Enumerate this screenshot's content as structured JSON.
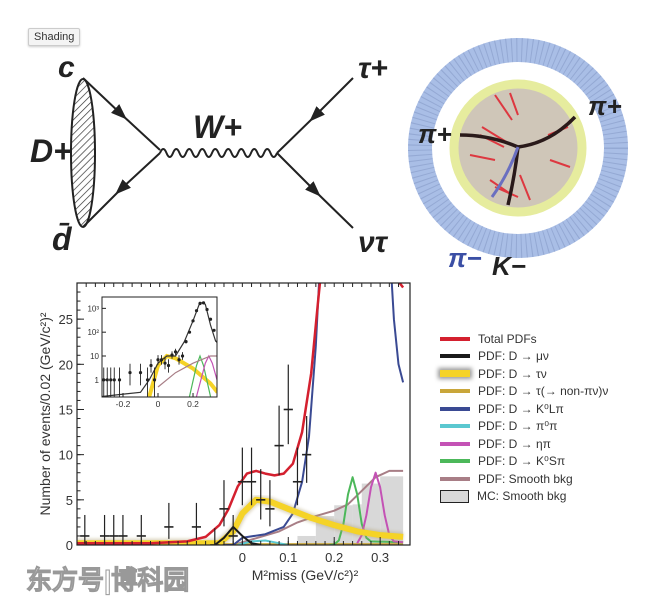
{
  "tooltip": "Shading",
  "feynman": {
    "labels": {
      "quark": "c",
      "meson": "D+",
      "antiquark": "d̄",
      "boson": "W+",
      "lepton": "τ+",
      "neutrino": "ντ"
    }
  },
  "detector": {
    "labels": {
      "pi_plus_left": "π+",
      "pi_plus_right": "π+",
      "pi_minus": "π−",
      "k_minus": "K−"
    }
  },
  "legend": [
    {
      "label": "Total PDFs",
      "color": "#d4202f"
    },
    {
      "label": "PDF: D → μν",
      "color": "#1a1a1a"
    },
    {
      "label": "PDF: D → τν",
      "color": "#f5d327"
    },
    {
      "label": "PDF: D → τ(→ non-πν)ν",
      "color": "#c9a63a"
    },
    {
      "label": "PDF: D → K⁰Lπ",
      "color": "#3a4a93"
    },
    {
      "label": "PDF: D → π⁰π",
      "color": "#5bc8d0"
    },
    {
      "label": "PDF: D → ηπ",
      "color": "#c452b5"
    },
    {
      "label": "PDF: D → K⁰Sπ",
      "color": "#4cb85a"
    },
    {
      "label": "PDF: Smooth bkg",
      "color": "#a87e86"
    },
    {
      "label": "MC: Smooth bkg",
      "color": "#d8d8d8"
    }
  ],
  "watermark": "东方号|博科园",
  "chart_data": [
    {
      "type": "line",
      "ylabel": "Number of events/0.02 (GeV/c²)²",
      "xlabel": "M²miss (GeV/c²)²",
      "xlim": [
        -0.36,
        0.365
      ],
      "ylim": [
        0,
        29
      ],
      "xticks": [
        0,
        0.1,
        0.2,
        0.3
      ],
      "xtick_labels": [
        "0",
        "0.1",
        "0.2",
        "0.3"
      ],
      "yticks": [
        0,
        5,
        10,
        15,
        20,
        25
      ],
      "ytick_labels": [
        "0",
        "5",
        "10",
        "15",
        "20",
        "25"
      ],
      "data_points": {
        "x": [
          -0.343,
          -0.3,
          -0.28,
          -0.26,
          -0.22,
          -0.16,
          -0.1,
          -0.06,
          -0.04,
          -0.02,
          0.0,
          0.02,
          0.04,
          0.06,
          0.08,
          0.1,
          0.12,
          0.14
        ],
        "y": [
          1,
          1,
          1,
          1,
          1,
          2,
          2,
          0,
          4,
          1,
          7,
          7,
          5,
          4,
          11,
          15,
          7,
          10
        ]
      },
      "mc_histogram": {
        "edges": [
          0.12,
          0.16,
          0.2,
          0.24,
          0.26,
          0.3,
          0.35
        ],
        "values": [
          1.0,
          3.2,
          4.4,
          4.5,
          6.8,
          7.6
        ]
      },
      "series": [
        {
          "key": "smooth_bkg",
          "segments": [
            [
              [
                -0.36,
                0
              ],
              [
                -0.02,
                0
              ],
              [
                0.02,
                0.6
              ],
              [
                0.08,
                1.5
              ],
              [
                0.12,
                2.5
              ],
              [
                0.16,
                3.2
              ],
              [
                0.2,
                3.8
              ],
              [
                0.23,
                4.5
              ],
              [
                0.26,
                6
              ],
              [
                0.29,
                7.5
              ],
              [
                0.32,
                8.2
              ],
              [
                0.35,
                8.2
              ]
            ]
          ]
        },
        {
          "key": "non_pinu",
          "segments": [
            [
              [
                -0.36,
                0.1
              ],
              [
                0.35,
                0.1
              ]
            ]
          ]
        },
        {
          "key": "pi0pi",
          "segments": [
            [
              [
                -0.01,
                0
              ],
              [
                0.02,
                0.4
              ],
              [
                0.05,
                0.5
              ],
              [
                0.08,
                0.2
              ],
              [
                0.1,
                0
              ]
            ]
          ]
        },
        {
          "key": "ks_pi",
          "segments": [
            [
              [
                0.19,
                0
              ],
              [
                0.2,
                0.07
              ],
              [
                0.21,
                0.5
              ],
              [
                0.22,
                2.3
              ],
              [
                0.23,
                5.6
              ],
              [
                0.24,
                7.5
              ],
              [
                0.25,
                5.6
              ],
              [
                0.26,
                2.3
              ],
              [
                0.27,
                0.8
              ],
              [
                0.28,
                0.4
              ],
              [
                0.35,
                0.3
              ]
            ]
          ]
        },
        {
          "key": "eta_pi",
          "segments": [
            [
              [
                0.25,
                0.2
              ],
              [
                0.26,
                1.1
              ],
              [
                0.27,
                3.3
              ],
              [
                0.28,
                6.4
              ],
              [
                0.29,
                8
              ],
              [
                0.3,
                6.4
              ],
              [
                0.31,
                3.3
              ],
              [
                0.32,
                1.1
              ],
              [
                0.33,
                0.4
              ],
              [
                0.35,
                0.3
              ]
            ]
          ]
        },
        {
          "key": "kl_pi",
          "segments": [
            [
              [
                -0.36,
                0
              ],
              [
                -0.02,
                0
              ],
              [
                0.0,
                0.8
              ],
              [
                0.05,
                1.2
              ],
              [
                0.09,
                2
              ],
              [
                0.11,
                3.5
              ],
              [
                0.13,
                7
              ],
              [
                0.145,
                12
              ],
              [
                0.16,
                22
              ],
              [
                0.17,
                32
              ]
            ],
            [
              [
                0.322,
                32
              ],
              [
                0.33,
                25
              ],
              [
                0.34,
                20
              ],
              [
                0.35,
                18
              ]
            ]
          ]
        },
        {
          "key": "tau_nu",
          "segments": [
            [
              [
                -0.36,
                0.2
              ],
              [
                -0.05,
                0.2
              ],
              [
                -0.02,
                1.5
              ],
              [
                0.0,
                3.5
              ],
              [
                0.03,
                5
              ],
              [
                0.06,
                4.8
              ],
              [
                0.1,
                4
              ],
              [
                0.15,
                3
              ],
              [
                0.2,
                2.2
              ],
              [
                0.25,
                1.5
              ],
              [
                0.3,
                1.1
              ],
              [
                0.35,
                0.9
              ]
            ]
          ]
        },
        {
          "key": "mu_nu",
          "segments": [
            [
              [
                -0.06,
                0
              ],
              [
                -0.04,
                0.8
              ],
              [
                -0.02,
                2
              ],
              [
                0.0,
                1
              ],
              [
                0.02,
                0.2
              ],
              [
                0.04,
                0
              ]
            ]
          ]
        },
        {
          "key": "total",
          "segments": [
            [
              [
                -0.36,
                0.2
              ],
              [
                -0.2,
                0.2
              ],
              [
                -0.12,
                0.4
              ],
              [
                -0.08,
                0.9
              ],
              [
                -0.05,
                2.2
              ],
              [
                -0.03,
                4
              ],
              [
                -0.01,
                6.5
              ],
              [
                0.01,
                7.9
              ],
              [
                0.03,
                8.2
              ],
              [
                0.05,
                7.9
              ],
              [
                0.07,
                7.7
              ],
              [
                0.09,
                7.9
              ],
              [
                0.11,
                9
              ],
              [
                0.13,
                12.5
              ],
              [
                0.15,
                19
              ],
              [
                0.165,
                27
              ],
              [
                0.175,
                32
              ]
            ],
            [
              [
                0.315,
                32
              ],
              [
                0.325,
                30
              ],
              [
                0.335,
                29.5
              ],
              [
                0.35,
                28.5
              ]
            ]
          ]
        }
      ]
    },
    {
      "type": "line",
      "scale": "log-y",
      "xlim": [
        -0.32,
        0.337
      ],
      "ylim": [
        0.19,
        3000
      ],
      "xticks": [
        -0.2,
        0,
        0.2
      ],
      "xtick_labels": [
        "-0.2",
        "0",
        "0.2"
      ],
      "yticks": [
        1,
        10,
        100,
        1000
      ],
      "ytick_labels": [
        "1",
        "10",
        "10²",
        "10³"
      ],
      "data_points": {
        "x": [
          -0.31,
          -0.29,
          -0.27,
          -0.25,
          -0.22,
          -0.16,
          -0.1,
          -0.06,
          -0.04,
          -0.02,
          0,
          0.02,
          0.04,
          0.06,
          0.08,
          0.1,
          0.12,
          0.14,
          0.16,
          0.18,
          0.2,
          0.22,
          0.24,
          0.26,
          0.28,
          0.3,
          0.32,
          0.34
        ],
        "y": [
          1,
          1,
          1,
          1,
          1,
          2,
          2,
          1,
          4,
          1,
          7,
          7,
          5,
          4,
          11,
          15,
          7,
          10,
          40,
          100,
          300,
          800,
          1600,
          1700,
          900,
          350,
          120,
          40
        ]
      },
      "series": [
        {
          "key": "tau_nu",
          "segments": [
            [
              [
                -0.05,
                0.2
              ],
              [
                0,
                4
              ],
              [
                0.05,
                10
              ],
              [
                0.1,
                8
              ],
              [
                0.2,
                3
              ],
              [
                0.3,
                0.7
              ],
              [
                0.34,
                0.3
              ]
            ]
          ]
        },
        {
          "key": "ks_pi",
          "segments": [
            [
              [
                0.18,
                0.2
              ],
              [
                0.22,
                4
              ],
              [
                0.24,
                10
              ],
              [
                0.26,
                4
              ],
              [
                0.3,
                0.2
              ]
            ]
          ]
        },
        {
          "key": "eta_pi",
          "segments": [
            [
              [
                0.22,
                0.2
              ],
              [
                0.27,
                5
              ],
              [
                0.29,
                10
              ],
              [
                0.31,
                5
              ],
              [
                0.337,
                1
              ]
            ]
          ]
        },
        {
          "key": "smooth_bkg",
          "segments": [
            [
              [
                0.0,
                0.5
              ],
              [
                0.1,
                2
              ],
              [
                0.2,
                5
              ],
              [
                0.3,
                10
              ],
              [
                0.337,
                10
              ]
            ]
          ]
        },
        {
          "key": "total",
          "segments": [
            [
              [
                -0.32,
                0.2
              ],
              [
                -0.1,
                0.3
              ],
              [
                -0.05,
                1
              ],
              [
                0,
                5
              ],
              [
                0.05,
                10
              ],
              [
                0.1,
                10
              ],
              [
                0.15,
                40
              ],
              [
                0.2,
                300
              ],
              [
                0.24,
                1800
              ],
              [
                0.27,
                1500
              ],
              [
                0.3,
                200
              ],
              [
                0.33,
                40
              ]
            ]
          ]
        }
      ]
    }
  ]
}
